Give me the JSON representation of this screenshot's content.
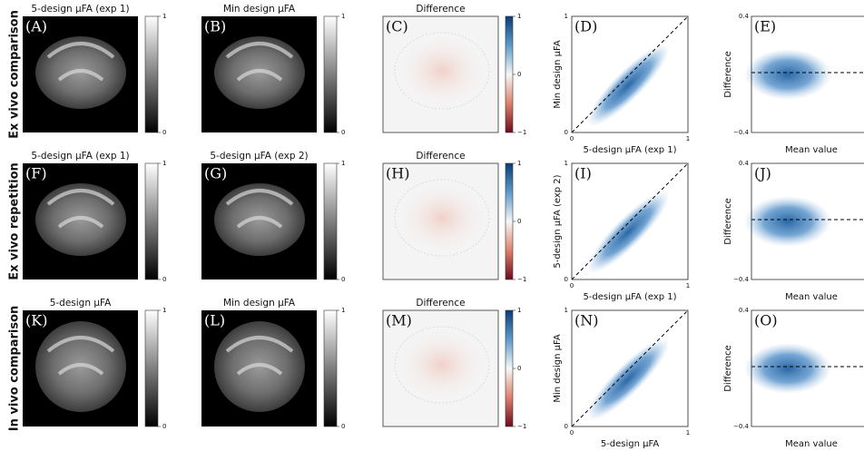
{
  "rows": [
    {
      "label": "Ex vivo comparison",
      "maps": [
        {
          "title": "5-design µFA (exp 1)",
          "letter": "(A)",
          "cbar_ticks": [
            "1",
            "0"
          ]
        },
        {
          "title": "Min design µFA",
          "letter": "(B)",
          "cbar_ticks": [
            "1",
            "0"
          ]
        },
        {
          "title": "Difference",
          "letter": "(C)",
          "cbar_ticks": [
            "1",
            "0",
            "−1"
          ]
        }
      ],
      "scatter": {
        "letter": "(D)",
        "xlabel": "5-design µFA (exp 1)",
        "ylabel": "Min design µFA",
        "xticks": [
          "0",
          "1"
        ],
        "yticks": [
          "1",
          "0"
        ]
      },
      "ba": {
        "letter": "(E)",
        "xlabel": "Mean value",
        "ylabel": "Difference",
        "yticks": [
          "0.4",
          "−0.4"
        ]
      }
    },
    {
      "label": "Ex vivo repetition",
      "maps": [
        {
          "title": "5-design µFA (exp 1)",
          "letter": "(F)",
          "cbar_ticks": [
            "1",
            "0"
          ]
        },
        {
          "title": "5-design µFA (exp 2)",
          "letter": "(G)",
          "cbar_ticks": [
            "1",
            "0"
          ]
        },
        {
          "title": "Difference",
          "letter": "(H)",
          "cbar_ticks": [
            "1",
            "0",
            "−1"
          ]
        }
      ],
      "scatter": {
        "letter": "(I)",
        "xlabel": "5-design µFA (exp 1)",
        "ylabel": "5-design µFA (exp 2)",
        "xticks": [
          "0",
          "1"
        ],
        "yticks": [
          "1",
          "0"
        ]
      },
      "ba": {
        "letter": "(J)",
        "xlabel": "Mean value",
        "ylabel": "Difference",
        "yticks": [
          "0.4",
          "−0.4"
        ]
      }
    },
    {
      "label": "In vivo comparison",
      "maps": [
        {
          "title": "5-design µFA",
          "letter": "(K)",
          "cbar_ticks": [
            "1",
            "0"
          ]
        },
        {
          "title": "Min design µFA",
          "letter": "(L)",
          "cbar_ticks": [
            "1",
            "0"
          ]
        },
        {
          "title": "Difference",
          "letter": "(M)",
          "cbar_ticks": [
            "1",
            "0",
            "−1"
          ]
        }
      ],
      "scatter": {
        "letter": "(N)",
        "xlabel": "5-design µFA",
        "ylabel": "Min design µFA",
        "xticks": [
          "0",
          "1"
        ],
        "yticks": [
          "1",
          "0"
        ]
      },
      "ba": {
        "letter": "(O)",
        "xlabel": "Mean value",
        "ylabel": "Difference",
        "yticks": [
          "0.4",
          "−0.4"
        ]
      }
    }
  ]
}
